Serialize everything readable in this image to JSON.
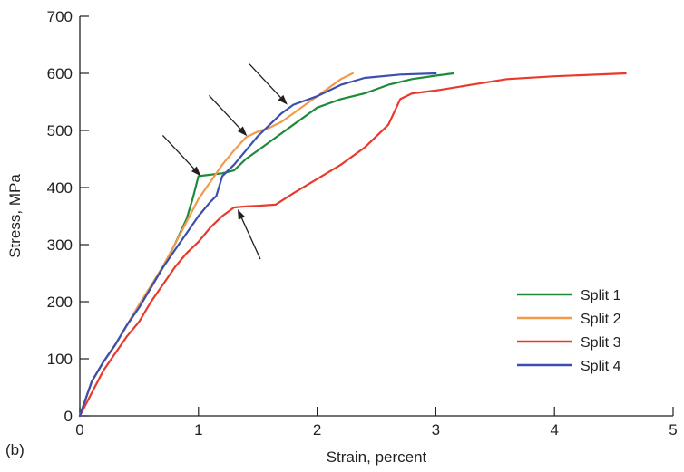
{
  "panel_label": "(b)",
  "chart_data": {
    "type": "line",
    "title": "",
    "xlabel": "Strain, percent",
    "ylabel": "Stress, MPa",
    "xlim": [
      0,
      5
    ],
    "ylim": [
      0,
      700
    ],
    "x_ticks": [
      0,
      1,
      2,
      3,
      4,
      5
    ],
    "y_ticks": [
      0,
      100,
      200,
      300,
      400,
      500,
      600,
      700
    ],
    "grid": false,
    "legend_position": "bottom-right",
    "series": [
      {
        "name": "Split 1",
        "color": "#1e8a3a",
        "points": [
          [
            0,
            0
          ],
          [
            0.05,
            30
          ],
          [
            0.1,
            60
          ],
          [
            0.2,
            95
          ],
          [
            0.3,
            125
          ],
          [
            0.4,
            160
          ],
          [
            0.5,
            190
          ],
          [
            0.6,
            225
          ],
          [
            0.7,
            260
          ],
          [
            0.8,
            300
          ],
          [
            0.9,
            345
          ],
          [
            0.95,
            380
          ],
          [
            1.0,
            420
          ],
          [
            1.2,
            425
          ],
          [
            1.3,
            430
          ],
          [
            1.4,
            450
          ],
          [
            1.5,
            465
          ],
          [
            1.6,
            480
          ],
          [
            1.7,
            495
          ],
          [
            1.8,
            510
          ],
          [
            1.9,
            525
          ],
          [
            2.0,
            540
          ],
          [
            2.2,
            555
          ],
          [
            2.4,
            565
          ],
          [
            2.6,
            580
          ],
          [
            2.8,
            590
          ],
          [
            3.0,
            596
          ],
          [
            3.15,
            600
          ]
        ]
      },
      {
        "name": "Split 2",
        "color": "#f39a4a",
        "points": [
          [
            0,
            0
          ],
          [
            0.05,
            30
          ],
          [
            0.1,
            60
          ],
          [
            0.2,
            95
          ],
          [
            0.3,
            125
          ],
          [
            0.4,
            160
          ],
          [
            0.5,
            195
          ],
          [
            0.6,
            228
          ],
          [
            0.7,
            262
          ],
          [
            0.8,
            300
          ],
          [
            0.9,
            340
          ],
          [
            1.0,
            380
          ],
          [
            1.1,
            410
          ],
          [
            1.2,
            440
          ],
          [
            1.3,
            465
          ],
          [
            1.4,
            488
          ],
          [
            1.5,
            498
          ],
          [
            1.6,
            505
          ],
          [
            1.7,
            515
          ],
          [
            1.8,
            530
          ],
          [
            1.9,
            545
          ],
          [
            2.0,
            560
          ],
          [
            2.1,
            575
          ],
          [
            2.2,
            590
          ],
          [
            2.3,
            600
          ]
        ]
      },
      {
        "name": "Split 3",
        "color": "#e8392b",
        "points": [
          [
            0,
            0
          ],
          [
            0.1,
            40
          ],
          [
            0.2,
            80
          ],
          [
            0.3,
            110
          ],
          [
            0.4,
            140
          ],
          [
            0.5,
            165
          ],
          [
            0.6,
            200
          ],
          [
            0.7,
            230
          ],
          [
            0.8,
            260
          ],
          [
            0.9,
            285
          ],
          [
            1.0,
            305
          ],
          [
            1.1,
            330
          ],
          [
            1.2,
            350
          ],
          [
            1.3,
            365
          ],
          [
            1.4,
            367
          ],
          [
            1.5,
            368
          ],
          [
            1.65,
            370
          ],
          [
            1.8,
            390
          ],
          [
            2.0,
            415
          ],
          [
            2.2,
            440
          ],
          [
            2.4,
            470
          ],
          [
            2.6,
            510
          ],
          [
            2.7,
            555
          ],
          [
            2.8,
            565
          ],
          [
            3.0,
            570
          ],
          [
            3.3,
            580
          ],
          [
            3.6,
            590
          ],
          [
            4.0,
            595
          ],
          [
            4.6,
            600
          ]
        ]
      },
      {
        "name": "Split 4",
        "color": "#3b4fb0",
        "points": [
          [
            0,
            0
          ],
          [
            0.05,
            30
          ],
          [
            0.1,
            60
          ],
          [
            0.2,
            95
          ],
          [
            0.3,
            125
          ],
          [
            0.4,
            160
          ],
          [
            0.5,
            190
          ],
          [
            0.6,
            225
          ],
          [
            0.7,
            260
          ],
          [
            0.8,
            290
          ],
          [
            0.9,
            320
          ],
          [
            1.0,
            350
          ],
          [
            1.1,
            375
          ],
          [
            1.15,
            385
          ],
          [
            1.2,
            420
          ],
          [
            1.3,
            440
          ],
          [
            1.4,
            465
          ],
          [
            1.5,
            490
          ],
          [
            1.6,
            510
          ],
          [
            1.7,
            530
          ],
          [
            1.8,
            545
          ],
          [
            2.0,
            560
          ],
          [
            2.2,
            580
          ],
          [
            2.4,
            592
          ],
          [
            2.7,
            598
          ],
          [
            3.0,
            600
          ]
        ]
      }
    ],
    "annotations": {
      "arrows": [
        {
          "series": "Split 1",
          "x": 1.02,
          "y": 420
        },
        {
          "series": "Split 2",
          "x": 1.41,
          "y": 490
        },
        {
          "series": "Split 4",
          "x": 1.75,
          "y": 545
        },
        {
          "series": "Split 3",
          "x": 1.33,
          "y": 362
        }
      ]
    }
  }
}
